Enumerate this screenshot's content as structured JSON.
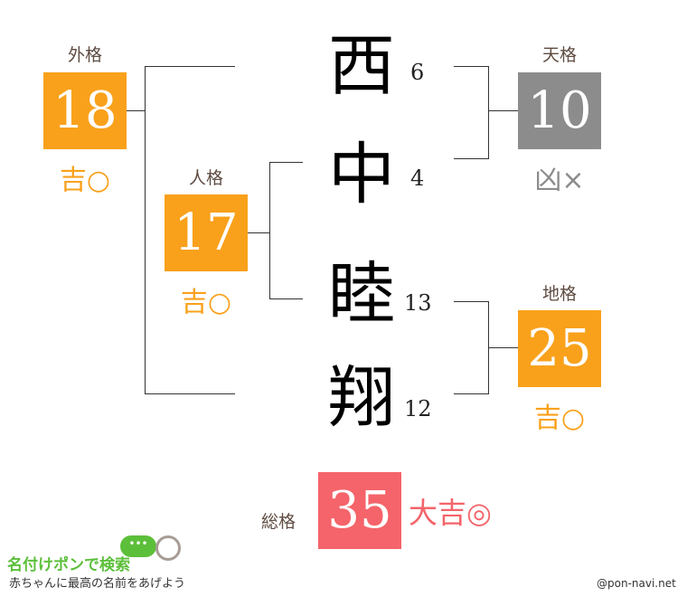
{
  "name_chars": [
    {
      "char": "西",
      "strokes": "6"
    },
    {
      "char": "中",
      "strokes": "4"
    },
    {
      "char": "睦",
      "strokes": "13"
    },
    {
      "char": "翔",
      "strokes": "12"
    }
  ],
  "gaikaku": {
    "label": "外格",
    "value": "18",
    "fortune": "吉○",
    "color": "#f9a11b"
  },
  "jinkaku": {
    "label": "人格",
    "value": "17",
    "fortune": "吉○",
    "color": "#f9a11b"
  },
  "tenkaku": {
    "label": "天格",
    "value": "10",
    "fortune": "凶×",
    "color": "#8c8c8c"
  },
  "chikaku": {
    "label": "地格",
    "value": "25",
    "fortune": "吉○",
    "color": "#f9a11b"
  },
  "soukaku": {
    "label": "総格",
    "value": "35",
    "fortune": "大吉◎",
    "color": "#f4646a"
  },
  "footer": {
    "logo": "名付けポンで検索",
    "tagline": "赤ちゃんに最高の名前をあげよう",
    "credit": "@pon-navi.net"
  }
}
